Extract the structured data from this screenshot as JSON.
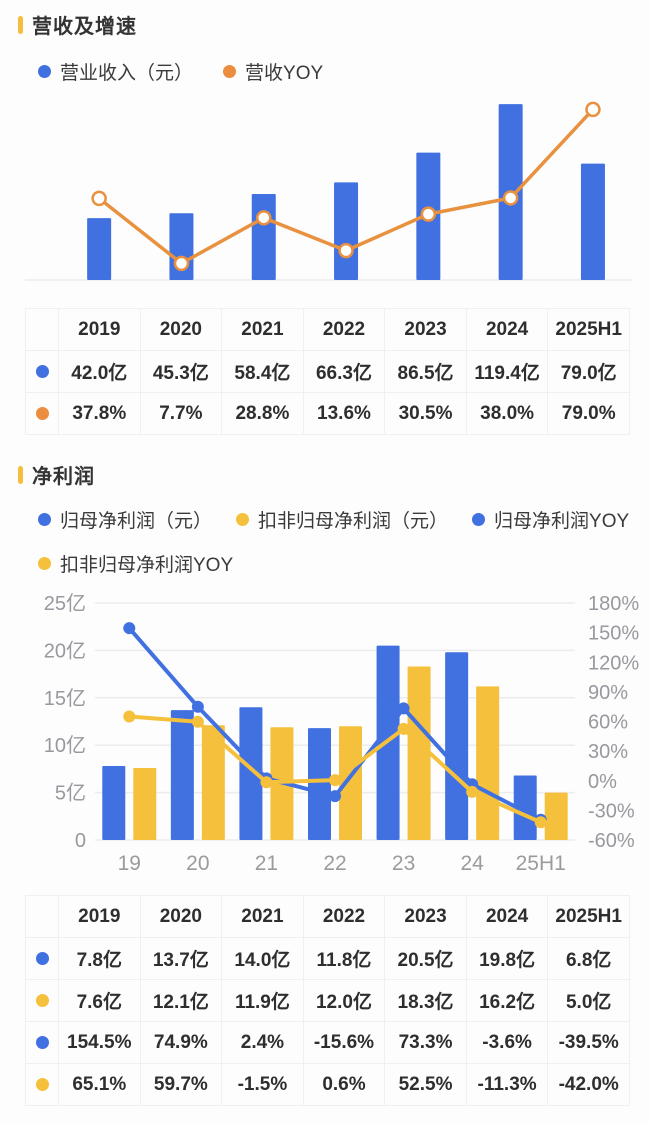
{
  "sections": {
    "revenue": {
      "title": "营收及增速",
      "legend": [
        {
          "label": "营业收入（元）",
          "color": "#4170E0"
        },
        {
          "label": "营收YOY",
          "color": "#EC8C3E"
        }
      ]
    },
    "profit": {
      "title": "净利润",
      "legend": [
        {
          "label": "归母净利润（元）",
          "color": "#4170E0"
        },
        {
          "label": "扣非归母净利润（元）",
          "color": "#F5C13C"
        },
        {
          "label": "归母净利润YOY",
          "color": "#4170E0"
        },
        {
          "label": "扣非归母净利润YOY",
          "color": "#F5C13C"
        }
      ]
    }
  },
  "chart_data": [
    {
      "id": "revenue-chart",
      "type": "bar+line",
      "title": "营收及增速",
      "categories": [
        "2019",
        "2020",
        "2021",
        "2022",
        "2023",
        "2024",
        "2025H1"
      ],
      "series": [
        {
          "name": "营业收入（元）",
          "type": "bar",
          "unit": "亿",
          "color": "#4170E0",
          "values": [
            42.0,
            45.3,
            58.4,
            66.3,
            86.5,
            119.4,
            79.0
          ]
        },
        {
          "name": "营收YOY",
          "type": "line",
          "unit": "%",
          "color": "#E8913F",
          "marker": "hollow-circle",
          "values": [
            37.8,
            7.7,
            28.8,
            13.6,
            30.5,
            38.0,
            79.0
          ]
        }
      ],
      "bar_axis": {
        "min": 0,
        "max": 129,
        "visible": false
      },
      "line_axis": {
        "min": 0,
        "max": 88,
        "visible": false
      },
      "grid": false,
      "legend_position": "top"
    },
    {
      "id": "profit-chart",
      "type": "bar+line",
      "title": "净利润",
      "categories": [
        "19",
        "20",
        "21",
        "22",
        "23",
        "24",
        "25H1"
      ],
      "left_axis": {
        "ticks": [
          "25亿",
          "20亿",
          "15亿",
          "10亿",
          "5亿",
          "0"
        ],
        "min": 0,
        "max": 25,
        "unit": "亿"
      },
      "right_axis": {
        "ticks": [
          "180%",
          "150%",
          "120%",
          "90%",
          "60%",
          "30%",
          "0%",
          "-30%",
          "-60%"
        ],
        "min": -60,
        "max": 180,
        "unit": "%"
      },
      "series": [
        {
          "name": "归母净利润（元）",
          "type": "bar",
          "unit": "亿",
          "color": "#4170E0",
          "values": [
            7.8,
            13.7,
            14.0,
            11.8,
            20.5,
            19.8,
            6.8
          ]
        },
        {
          "name": "扣非归母净利润（元）",
          "type": "bar",
          "unit": "亿",
          "color": "#F5C13C",
          "values": [
            7.6,
            12.1,
            11.9,
            12.0,
            18.3,
            16.2,
            5.0
          ]
        },
        {
          "name": "归母净利润YOY",
          "type": "line",
          "unit": "%",
          "color": "#4170E0",
          "marker": "solid-circle",
          "values": [
            154.5,
            74.9,
            2.4,
            -15.6,
            73.3,
            -3.6,
            -39.5
          ]
        },
        {
          "name": "扣非归母净利润YOY",
          "type": "line",
          "unit": "%",
          "color": "#F5C13C",
          "marker": "solid-circle",
          "values": [
            65.1,
            59.7,
            -1.5,
            0.6,
            52.5,
            -11.3,
            -42.0
          ]
        }
      ],
      "grid": true,
      "legend_position": "top"
    }
  ],
  "tables": {
    "revenue": {
      "header": [
        "2019",
        "2020",
        "2021",
        "2022",
        "2023",
        "2024",
        "2025H1"
      ],
      "rows": [
        {
          "marker_color": "#4170E0",
          "cells": [
            "42.0亿",
            "45.3亿",
            "58.4亿",
            "66.3亿",
            "86.5亿",
            "119.4亿",
            "79.0亿"
          ]
        },
        {
          "marker_color": "#EC8C3E",
          "cells": [
            "37.8%",
            "7.7%",
            "28.8%",
            "13.6%",
            "30.5%",
            "38.0%",
            "79.0%"
          ]
        }
      ]
    },
    "profit": {
      "header": [
        "2019",
        "2020",
        "2021",
        "2022",
        "2023",
        "2024",
        "2025H1"
      ],
      "rows": [
        {
          "marker_color": "#4170E0",
          "cells": [
            "7.8亿",
            "13.7亿",
            "14.0亿",
            "11.8亿",
            "20.5亿",
            "19.8亿",
            "6.8亿"
          ]
        },
        {
          "marker_color": "#F5C13C",
          "cells": [
            "7.6亿",
            "12.1亿",
            "11.9亿",
            "12.0亿",
            "18.3亿",
            "16.2亿",
            "5.0亿"
          ]
        },
        {
          "marker_color": "#4170E0",
          "cells": [
            "154.5%",
            "74.9%",
            "2.4%",
            "-15.6%",
            "73.3%",
            "-3.6%",
            "-39.5%"
          ]
        },
        {
          "marker_color": "#F5C13C",
          "cells": [
            "65.1%",
            "59.7%",
            "-1.5%",
            "0.6%",
            "52.5%",
            "-11.3%",
            "-42.0%"
          ]
        }
      ]
    }
  },
  "colors": {
    "blue": "#4170E0",
    "orange": "#EC8C3E",
    "yellow": "#F5C13C",
    "section_marker": "#F6BD3F",
    "axis_text": "#98989e",
    "grid_line": "#ececec",
    "table_border": "#f0f0f0",
    "text": "#2e2e2e"
  }
}
